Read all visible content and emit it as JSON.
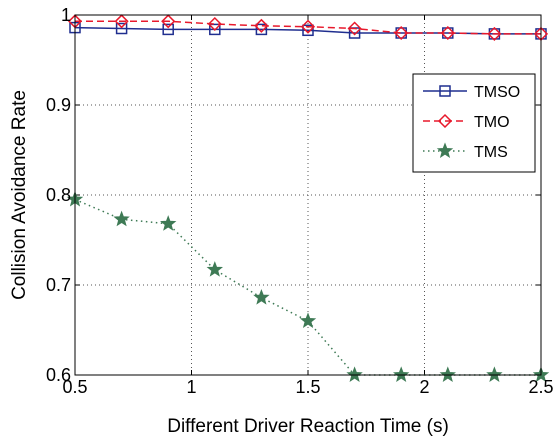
{
  "chart_data": {
    "type": "line",
    "xlabel": "Different Driver Reaction Time (s)",
    "ylabel": "Collision Avoidance Rate",
    "xlim": [
      0.5,
      2.5
    ],
    "ylim": [
      0.6,
      1.0
    ],
    "x_ticks": [
      "0.5",
      "1",
      "1.5",
      "2",
      "2.5"
    ],
    "y_ticks": [
      "0.6",
      "0.7",
      "0.8",
      "0.9",
      "1"
    ],
    "grid": true,
    "legend_position": "right",
    "x": [
      0.5,
      0.7,
      0.9,
      1.1,
      1.3,
      1.5,
      1.7,
      1.9,
      2.1,
      2.3,
      2.5
    ],
    "series": [
      {
        "name": "TMSO",
        "color": "#1f2e8f",
        "marker": "square",
        "line": "solid",
        "values": [
          0.986,
          0.985,
          0.984,
          0.984,
          0.984,
          0.983,
          0.98,
          0.98,
          0.98,
          0.979,
          0.979
        ]
      },
      {
        "name": "TMO",
        "color": "#e8192c",
        "marker": "diamond",
        "line": "dashed",
        "values": [
          0.993,
          0.993,
          0.993,
          0.99,
          0.988,
          0.987,
          0.985,
          0.98,
          0.98,
          0.979,
          0.979
        ]
      },
      {
        "name": "TMS",
        "color": "#3e7a55",
        "marker": "star",
        "line": "dotted",
        "values": [
          0.795,
          0.773,
          0.768,
          0.717,
          0.686,
          0.66,
          0.6,
          0.6,
          0.6,
          0.6,
          0.6
        ]
      }
    ]
  }
}
